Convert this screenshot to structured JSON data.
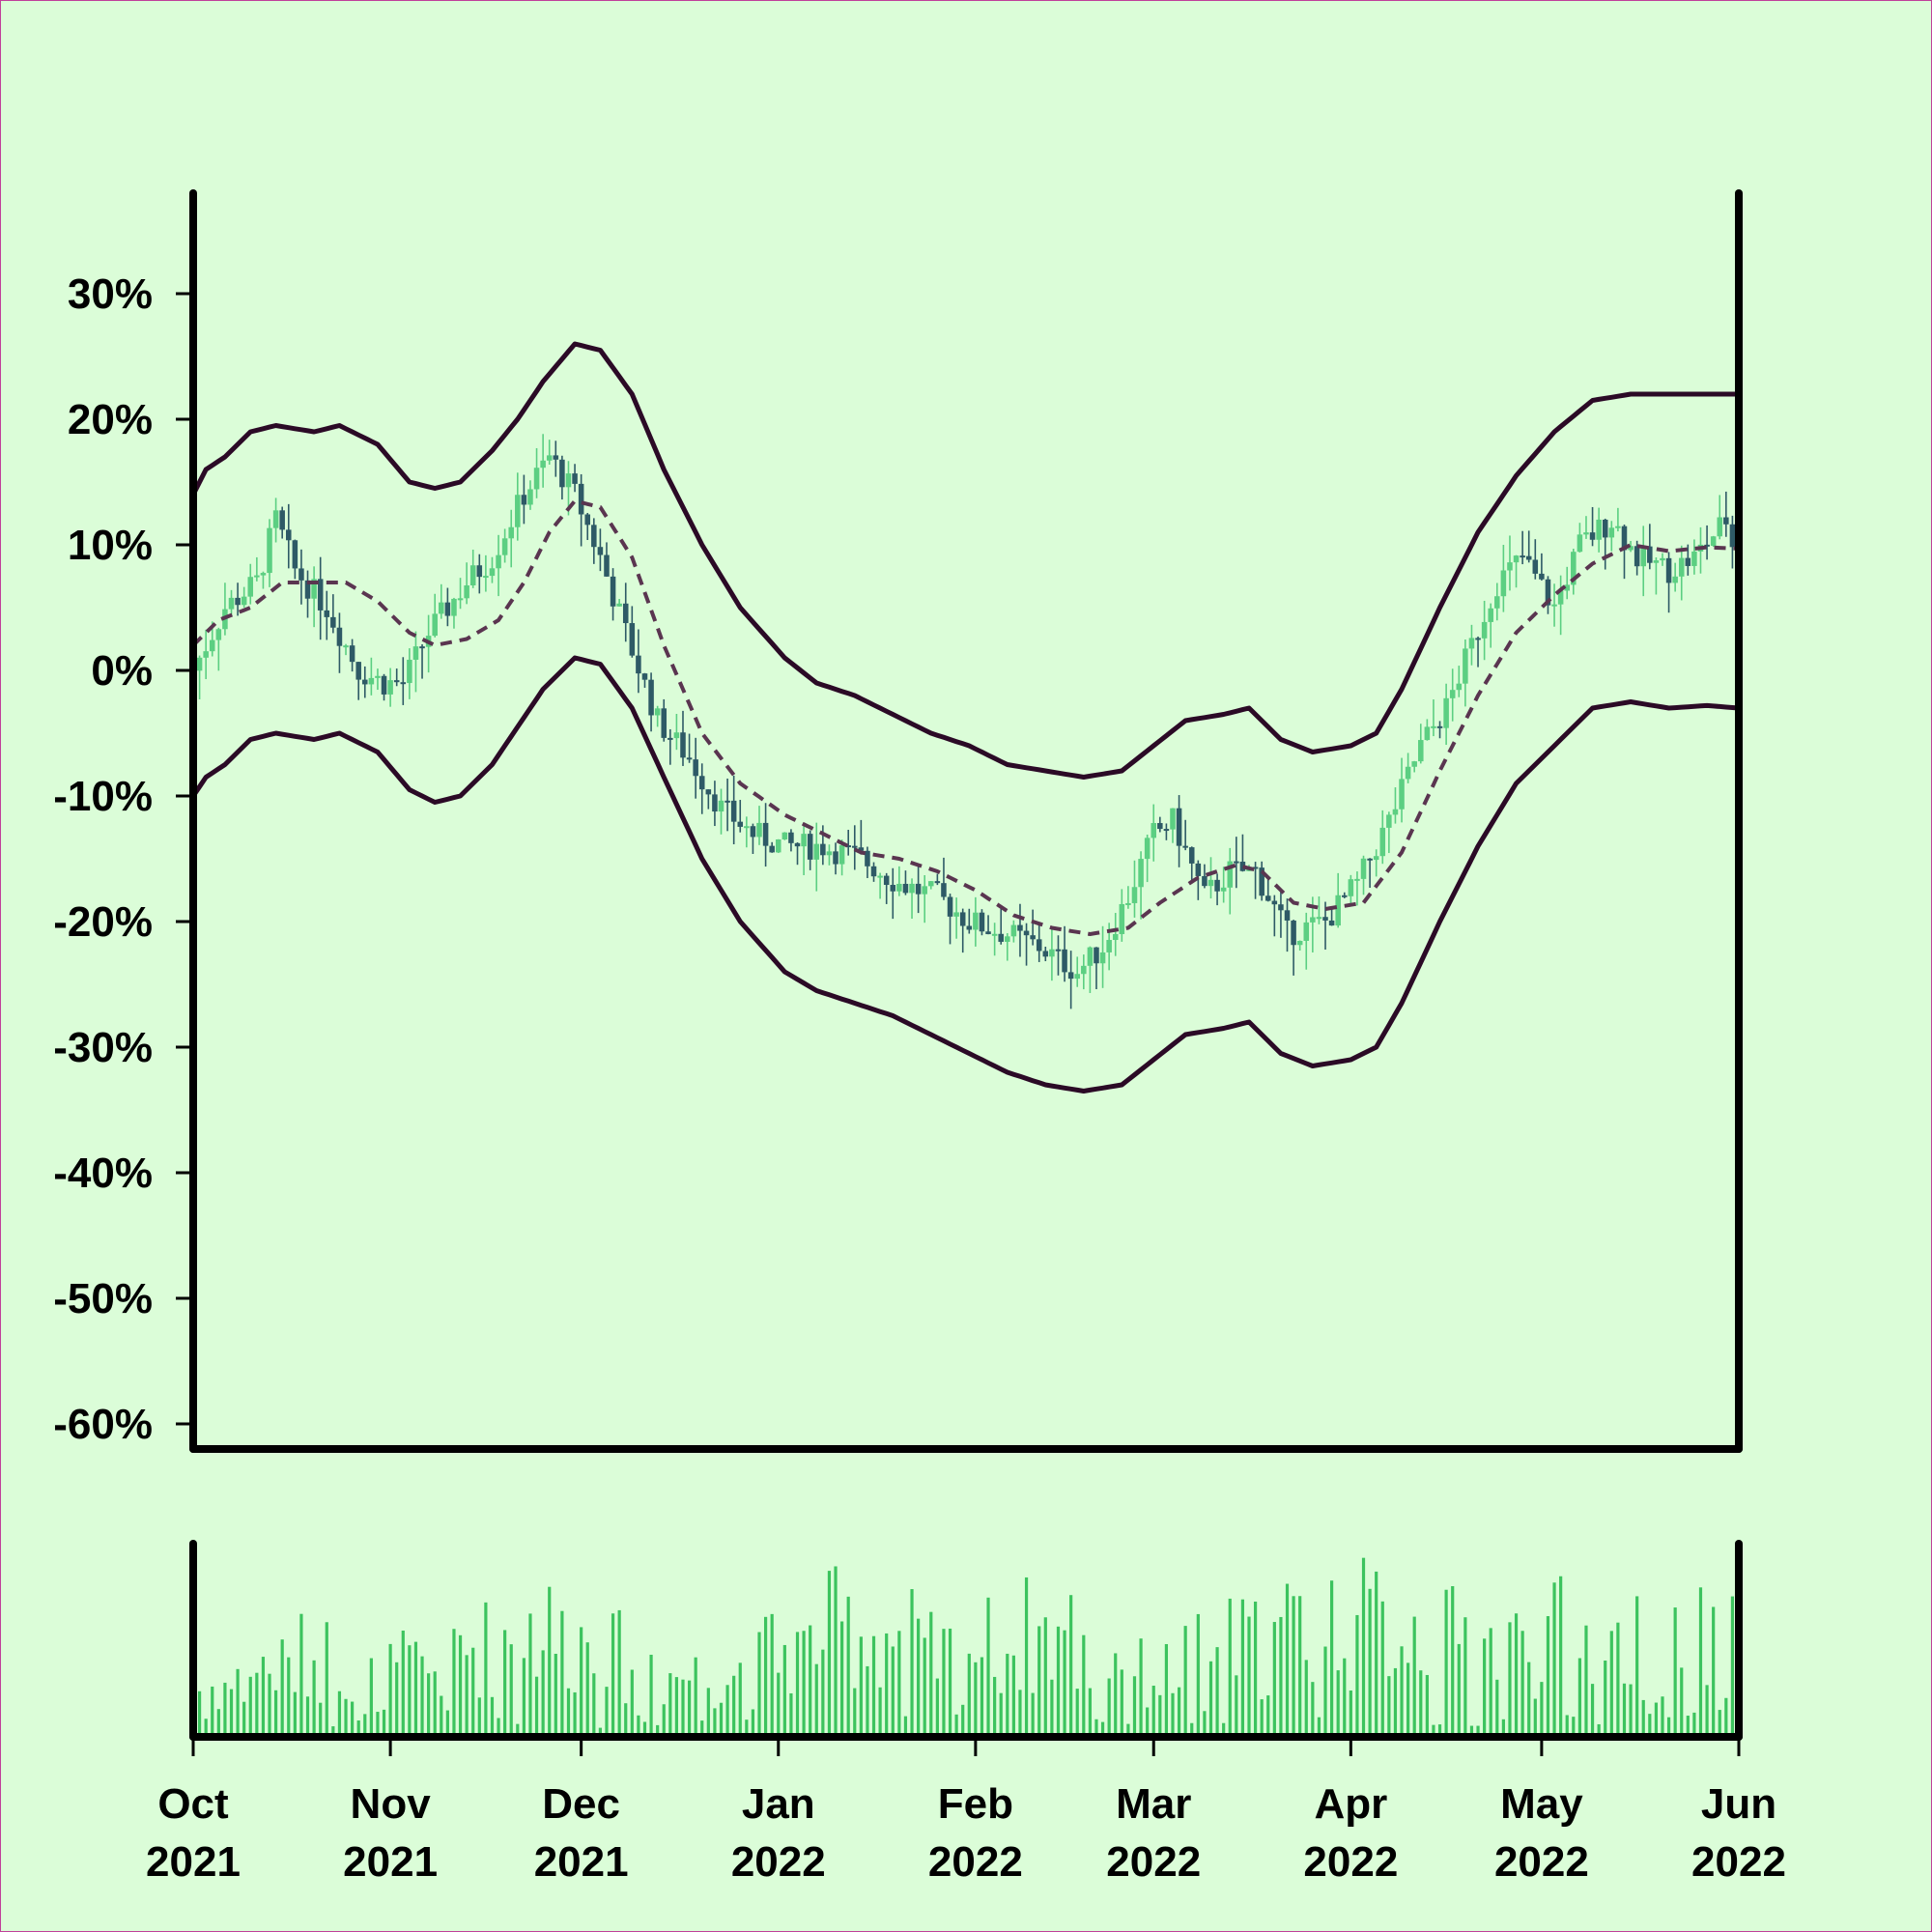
{
  "chart_data": {
    "type": "candlestick",
    "colors": {
      "background": "#dbfdd8",
      "up_candle": "#5ccf82",
      "down_candle": "#2e5a66",
      "band_line": "#2b0a26",
      "middle_line": "#5a3550",
      "volume_bar": "#3cc35e",
      "axis": "#000000"
    },
    "price_axis": {
      "ylim": [
        -62,
        38
      ],
      "ticks": [
        30,
        20,
        10,
        0,
        -10,
        -20,
        -30,
        -40,
        -50,
        -60
      ],
      "tick_labels": [
        "30%",
        "20%",
        "10%",
        "0%",
        "-10%",
        "-20%",
        "-30%",
        "-40%",
        "-50%",
        "-60%"
      ]
    },
    "x_axis": {
      "start": "2021-10-01",
      "end": "2022-06-01",
      "tick_dates": [
        "2021-10-01",
        "2021-11-01",
        "2021-12-01",
        "2022-01-01",
        "2022-02-01",
        "2022-03-01",
        "2022-04-01",
        "2022-05-01",
        "2022-06-01"
      ],
      "tick_labels": [
        [
          "Oct",
          "2021"
        ],
        [
          "Nov",
          "2021"
        ],
        [
          "Dec",
          "2021"
        ],
        [
          "Jan",
          "2022"
        ],
        [
          "Feb",
          "2022"
        ],
        [
          "Mar",
          "2022"
        ],
        [
          "Apr",
          "2022"
        ],
        [
          "May",
          "2022"
        ],
        [
          "Jun",
          "2022"
        ]
      ]
    },
    "series": [
      {
        "name": "",
        "role": "close",
        "points": [
          [
            "2021-10-01",
            0
          ],
          [
            "2021-10-06",
            5
          ],
          [
            "2021-10-11",
            7
          ],
          [
            "2021-10-14",
            12
          ],
          [
            "2021-10-17",
            8
          ],
          [
            "2021-10-22",
            5
          ],
          [
            "2021-10-27",
            0
          ],
          [
            "2021-10-31",
            -1
          ],
          [
            "2021-11-03",
            -1
          ],
          [
            "2021-11-07",
            3
          ],
          [
            "2021-11-13",
            7
          ],
          [
            "2021-11-17",
            9
          ],
          [
            "2021-11-22",
            14
          ],
          [
            "2021-11-26",
            17
          ],
          [
            "2021-11-30",
            14
          ],
          [
            "2021-12-04",
            9
          ],
          [
            "2021-12-08",
            3
          ],
          [
            "2021-12-13",
            -4
          ],
          [
            "2021-12-18",
            -7
          ],
          [
            "2021-12-23",
            -11
          ],
          [
            "2021-12-28",
            -13
          ],
          [
            "2022-01-02",
            -14
          ],
          [
            "2022-01-08",
            -14
          ],
          [
            "2022-01-14",
            -15
          ],
          [
            "2022-01-20",
            -17
          ],
          [
            "2022-01-26",
            -18
          ],
          [
            "2022-01-31",
            -20
          ],
          [
            "2022-02-06",
            -21
          ],
          [
            "2022-02-11",
            -22
          ],
          [
            "2022-02-17",
            -24
          ],
          [
            "2022-02-21",
            -22
          ],
          [
            "2022-02-25",
            -18
          ],
          [
            "2022-03-01",
            -13
          ],
          [
            "2022-03-04",
            -12
          ],
          [
            "2022-03-09",
            -18
          ],
          [
            "2022-03-13",
            -16
          ],
          [
            "2022-03-17",
            -16
          ],
          [
            "2022-03-22",
            -21
          ],
          [
            "2022-03-28",
            -20
          ],
          [
            "2022-04-02",
            -17
          ],
          [
            "2022-04-07",
            -12
          ],
          [
            "2022-04-12",
            -6
          ],
          [
            "2022-04-16",
            -3
          ],
          [
            "2022-04-20",
            2
          ],
          [
            "2022-04-24",
            7
          ],
          [
            "2022-04-28",
            9
          ],
          [
            "2022-05-03",
            5
          ],
          [
            "2022-05-07",
            10
          ],
          [
            "2022-05-12",
            12
          ],
          [
            "2022-05-16",
            9
          ],
          [
            "2022-05-21",
            8
          ],
          [
            "2022-05-25",
            9
          ],
          [
            "2022-05-30",
            12
          ],
          [
            "2022-06-01",
            8
          ]
        ]
      },
      {
        "name": "",
        "role": "moving_average",
        "points": [
          [
            "2021-10-01",
            2
          ],
          [
            "2021-10-05",
            4
          ],
          [
            "2021-10-10",
            5
          ],
          [
            "2021-10-15",
            7
          ],
          [
            "2021-10-20",
            7
          ],
          [
            "2021-10-25",
            7
          ],
          [
            "2021-10-30",
            5.5
          ],
          [
            "2021-11-04",
            3
          ],
          [
            "2021-11-08",
            2
          ],
          [
            "2021-11-13",
            2.5
          ],
          [
            "2021-11-18",
            4
          ],
          [
            "2021-11-22",
            7
          ],
          [
            "2021-11-26",
            11
          ],
          [
            "2021-11-30",
            13.5
          ],
          [
            "2021-12-04",
            13
          ],
          [
            "2021-12-09",
            9
          ],
          [
            "2021-12-14",
            2
          ],
          [
            "2021-12-20",
            -5
          ],
          [
            "2021-12-26",
            -9
          ],
          [
            "2022-01-02",
            -11.5
          ],
          [
            "2022-01-08",
            -13
          ],
          [
            "2022-01-14",
            -14.5
          ],
          [
            "2022-01-20",
            -15
          ],
          [
            "2022-01-26",
            -16
          ],
          [
            "2022-02-01",
            -17.5
          ],
          [
            "2022-02-07",
            -19.5
          ],
          [
            "2022-02-13",
            -20.5
          ],
          [
            "2022-02-19",
            -21
          ],
          [
            "2022-02-25",
            -20.5
          ],
          [
            "2022-03-02",
            -18.5
          ],
          [
            "2022-03-08",
            -16.5
          ],
          [
            "2022-03-14",
            -15.5
          ],
          [
            "2022-03-18",
            -16
          ],
          [
            "2022-03-23",
            -18.5
          ],
          [
            "2022-03-28",
            -19
          ],
          [
            "2022-04-03",
            -18.5
          ],
          [
            "2022-04-09",
            -14.5
          ],
          [
            "2022-04-15",
            -8
          ],
          [
            "2022-04-21",
            -2
          ],
          [
            "2022-04-27",
            3
          ],
          [
            "2022-05-03",
            6
          ],
          [
            "2022-05-09",
            8.5
          ],
          [
            "2022-05-15",
            10
          ],
          [
            "2022-05-21",
            9.5
          ],
          [
            "2022-05-27",
            9.8
          ],
          [
            "2022-06-01",
            9.7
          ]
        ]
      },
      {
        "name": "",
        "role": "upper_band",
        "points": [
          [
            "2021-10-01",
            14
          ],
          [
            "2021-10-03",
            16
          ],
          [
            "2021-10-06",
            17
          ],
          [
            "2021-10-10",
            19
          ],
          [
            "2021-10-14",
            19.5
          ],
          [
            "2021-10-20",
            19
          ],
          [
            "2021-10-24",
            19.5
          ],
          [
            "2021-10-30",
            18
          ],
          [
            "2021-11-04",
            15
          ],
          [
            "2021-11-08",
            14.5
          ],
          [
            "2021-11-12",
            15
          ],
          [
            "2021-11-17",
            17.5
          ],
          [
            "2021-11-21",
            20
          ],
          [
            "2021-11-25",
            23
          ],
          [
            "2021-11-30",
            26
          ],
          [
            "2021-12-04",
            25.5
          ],
          [
            "2021-12-09",
            22
          ],
          [
            "2021-12-14",
            16
          ],
          [
            "2021-12-20",
            10
          ],
          [
            "2021-12-26",
            5
          ],
          [
            "2022-01-02",
            1
          ],
          [
            "2022-01-07",
            -1
          ],
          [
            "2022-01-13",
            -2
          ],
          [
            "2022-01-19",
            -3.5
          ],
          [
            "2022-01-25",
            -5
          ],
          [
            "2022-01-31",
            -6
          ],
          [
            "2022-02-06",
            -7.5
          ],
          [
            "2022-02-12",
            -8
          ],
          [
            "2022-02-18",
            -8.5
          ],
          [
            "2022-02-24",
            -8
          ],
          [
            "2022-03-01",
            -6
          ],
          [
            "2022-03-06",
            -4
          ],
          [
            "2022-03-12",
            -3.5
          ],
          [
            "2022-03-16",
            -3
          ],
          [
            "2022-03-21",
            -5.5
          ],
          [
            "2022-03-26",
            -6.5
          ],
          [
            "2022-04-01",
            -6
          ],
          [
            "2022-04-05",
            -5
          ],
          [
            "2022-04-09",
            -1.5
          ],
          [
            "2022-04-15",
            5
          ],
          [
            "2022-04-21",
            11
          ],
          [
            "2022-04-27",
            15.5
          ],
          [
            "2022-05-03",
            19
          ],
          [
            "2022-05-09",
            21.5
          ],
          [
            "2022-05-15",
            22
          ],
          [
            "2022-05-21",
            22
          ],
          [
            "2022-05-27",
            22
          ],
          [
            "2022-06-01",
            22
          ]
        ]
      },
      {
        "name": "",
        "role": "lower_band",
        "points": [
          [
            "2021-10-01",
            -10
          ],
          [
            "2021-10-03",
            -8.5
          ],
          [
            "2021-10-06",
            -7.5
          ],
          [
            "2021-10-10",
            -5.5
          ],
          [
            "2021-10-14",
            -5
          ],
          [
            "2021-10-20",
            -5.5
          ],
          [
            "2021-10-24",
            -5
          ],
          [
            "2021-10-30",
            -6.5
          ],
          [
            "2021-11-04",
            -9.5
          ],
          [
            "2021-11-08",
            -10.5
          ],
          [
            "2021-11-12",
            -10
          ],
          [
            "2021-11-17",
            -7.5
          ],
          [
            "2021-11-21",
            -4.5
          ],
          [
            "2021-11-25",
            -1.5
          ],
          [
            "2021-11-30",
            1
          ],
          [
            "2021-12-04",
            0.5
          ],
          [
            "2021-12-09",
            -3
          ],
          [
            "2021-12-14",
            -8.5
          ],
          [
            "2021-12-20",
            -15
          ],
          [
            "2021-12-26",
            -20
          ],
          [
            "2022-01-02",
            -24
          ],
          [
            "2022-01-07",
            -25.5
          ],
          [
            "2022-01-13",
            -26.5
          ],
          [
            "2022-01-19",
            -27.5
          ],
          [
            "2022-01-25",
            -29
          ],
          [
            "2022-01-31",
            -30.5
          ],
          [
            "2022-02-06",
            -32
          ],
          [
            "2022-02-12",
            -33
          ],
          [
            "2022-02-18",
            -33.5
          ],
          [
            "2022-02-24",
            -33
          ],
          [
            "2022-03-01",
            -31
          ],
          [
            "2022-03-06",
            -29
          ],
          [
            "2022-03-12",
            -28.5
          ],
          [
            "2022-03-16",
            -28
          ],
          [
            "2022-03-21",
            -30.5
          ],
          [
            "2022-03-26",
            -31.5
          ],
          [
            "2022-04-01",
            -31
          ],
          [
            "2022-04-05",
            -30
          ],
          [
            "2022-04-09",
            -26.5
          ],
          [
            "2022-04-15",
            -20
          ],
          [
            "2022-04-21",
            -14
          ],
          [
            "2022-04-27",
            -9
          ],
          [
            "2022-05-03",
            -6
          ],
          [
            "2022-05-09",
            -3
          ],
          [
            "2022-05-15",
            -2.5
          ],
          [
            "2022-05-21",
            -3
          ],
          [
            "2022-05-27",
            -2.8
          ],
          [
            "2022-06-01",
            -3
          ]
        ]
      }
    ],
    "volume_profile": [
      0.45,
      0.6,
      0.7,
      0.55,
      0.6,
      0.8,
      0.95,
      0.85,
      0.7,
      0.55,
      0.6,
      0.75,
      0.95,
      0.9,
      0.7,
      0.8,
      0.9,
      0.7,
      0.55,
      0.7,
      0.8,
      0.95,
      1.0,
      0.95,
      0.85,
      0.8,
      0.9,
      0.8,
      0.75,
      0.85
    ]
  }
}
